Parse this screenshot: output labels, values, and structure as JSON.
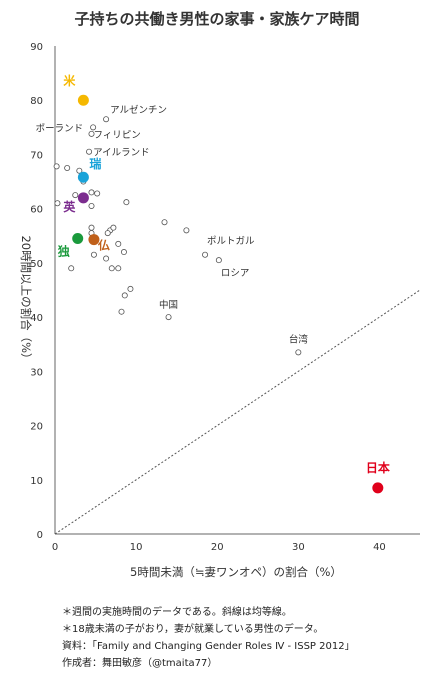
{
  "chart_data": {
    "type": "scatter",
    "title": "子持ちの共働き男性の家事・家族ケア時間",
    "xlabel": "5時間未満（≒妻ワンオペ）の割合（%）",
    "ylabel": "20時間以上の割合（%）",
    "xlim": [
      0,
      45
    ],
    "ylim": [
      0,
      90
    ],
    "xticks": [
      0,
      10,
      20,
      30,
      40
    ],
    "yticks": [
      0,
      10,
      20,
      30,
      40,
      50,
      60,
      70,
      80,
      90
    ],
    "reference_line": "equal",
    "grid": false,
    "highlighted": [
      {
        "label": "米",
        "x": 3.5,
        "y": 80.0,
        "color": "#f5b800"
      },
      {
        "label": "瑞",
        "x": 3.5,
        "y": 65.8,
        "color": "#1aa3d9"
      },
      {
        "label": "英",
        "x": 3.5,
        "y": 62.0,
        "color": "#7b2d8e"
      },
      {
        "label": "独",
        "x": 2.8,
        "y": 54.5,
        "color": "#1a9a3c"
      },
      {
        "label": "仏",
        "x": 4.8,
        "y": 54.3,
        "color": "#c0601a"
      },
      {
        "label": "日本",
        "x": 39.8,
        "y": 8.5,
        "color": "#e0001b"
      }
    ],
    "labeled": [
      {
        "label": "アルゼンチン",
        "x": 6.3,
        "y": 76.5
      },
      {
        "label": "ポーランド",
        "x": 4.7,
        "y": 75.0
      },
      {
        "label": "フィリピン",
        "x": 4.5,
        "y": 73.8
      },
      {
        "label": "アイルランド",
        "x": 4.2,
        "y": 70.5
      },
      {
        "label": "ポルトガル",
        "x": 18.5,
        "y": 51.5
      },
      {
        "label": "ロシア",
        "x": 20.2,
        "y": 50.5
      },
      {
        "label": "中国",
        "x": 14.0,
        "y": 40.0
      },
      {
        "label": "台湾",
        "x": 30.0,
        "y": 33.5
      }
    ],
    "others": [
      [
        0.2,
        67.8
      ],
      [
        1.5,
        67.5
      ],
      [
        3.0,
        67.0
      ],
      [
        0.3,
        61.0
      ],
      [
        2.5,
        62.5
      ],
      [
        4.5,
        63.0
      ],
      [
        5.2,
        62.8
      ],
      [
        8.8,
        61.2
      ],
      [
        4.5,
        60.5
      ],
      [
        4.5,
        56.5
      ],
      [
        4.5,
        55.5
      ],
      [
        6.8,
        56.0
      ],
      [
        7.2,
        56.5
      ],
      [
        6.5,
        55.5
      ],
      [
        7.8,
        53.5
      ],
      [
        8.5,
        52.0
      ],
      [
        4.8,
        51.5
      ],
      [
        6.3,
        50.8
      ],
      [
        2.0,
        49.0
      ],
      [
        7.0,
        49.0
      ],
      [
        7.8,
        49.0
      ],
      [
        9.3,
        45.2
      ],
      [
        8.6,
        44.0
      ],
      [
        8.2,
        41.0
      ],
      [
        13.5,
        57.5
      ],
      [
        16.2,
        56.0
      ],
      [
        3.5,
        65.0
      ]
    ]
  },
  "notes": {
    "line1": "＊週間の実施時間のデータである。斜線は均等線。",
    "line2": "＊18歳未満の子がおり，妻が就業している男性のデータ。",
    "source": "資料：「Family and Changing Gender Roles Ⅳ - ISSP 2012」",
    "author": "作成者：舞田敏彦（@tmaita77）"
  }
}
